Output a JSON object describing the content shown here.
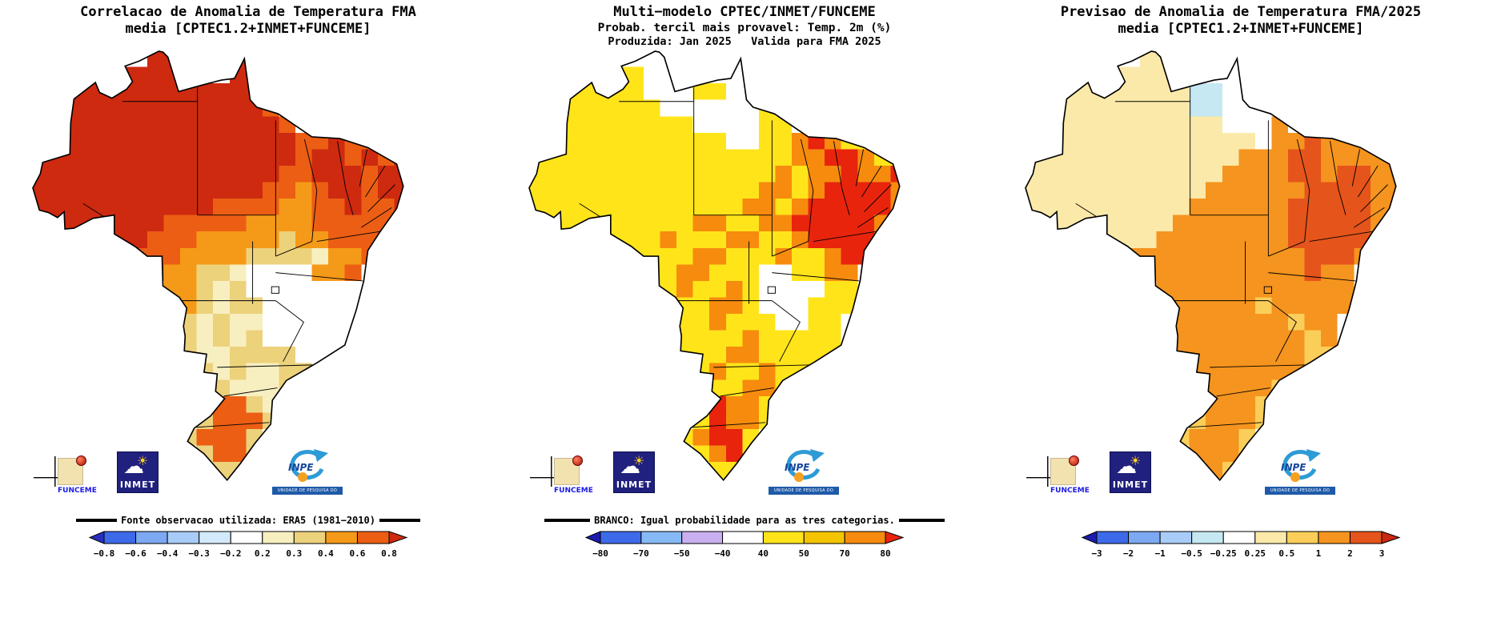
{
  "panels": [
    {
      "id": "correlation",
      "title_lines": [
        "Correlacao de Anomalia de Temperatura FMA",
        "media [CPTEC1.2+INMET+FUNCEME]"
      ],
      "footer": "Fonte observacao utilizada: ERA5 (1981−2010)",
      "colorbar": {
        "ticks": [
          "−0.8",
          "−0.6",
          "−0.4",
          "−0.3",
          "−0.2",
          "0.2",
          "0.3",
          "0.4",
          "0.6",
          "0.8"
        ],
        "colors": [
          "#2A2DBE",
          "#3D6AE8",
          "#7DA8F2",
          "#A8CCF7",
          "#D2EAFA",
          "#FFFFFF",
          "#F8EFC0",
          "#EDD27C",
          "#F59A18",
          "#EC5E14",
          "#CE2A10"
        ]
      },
      "map": {
        "palette": {
          "R": "#CE2A10",
          "r": "#EC5E14",
          "O": "#F59A18",
          "y": "#EDD27C",
          "c": "#F8EFC0",
          "w": "#FFFFFF"
        },
        "grid": [
          ".......RR...RR............",
          ".....RRRRR..RR............",
          "..RRRRRRRRRRRR............",
          "..RRRRRRRRRRRRr...........",
          "..RRRRRRRRRRRRRr..........",
          "..RRRRRRRRRRRRRRrrRrrRr...",
          "RRRRRRRRRRRRRRRRrRRrRrR...",
          "RRRRRRRRRRRRRRRrrRRRrRR...",
          "RRRRRRRRRRRRRRrrOrRRrRR...",
          "RRRRRRRRRRRrrrrOOrrRrrR...",
          ".RRRRRRRrrrrrOOOOrrrrr....",
          ".....RRrrrOOOOOyOOrrrr....",
          "......rrrOOOOyyyycOOr.....",
          ".......rOOyycwwwwOOr......",
          "........OOycywwwwwww......",
          ".........Oycyywwwwww......",
          ".........ycyccwwwww.......",
          ".........ycycywwwww.......",
          ".........yccyyyywww.......",
          "..........ycyccyyw........",
          "...........ycccy..........",
          "...........rryc...........",
          "..........yrrry...........",
          ".........yrrry............",
          "..........yrry............",
          "...........yy............."
        ]
      }
    },
    {
      "id": "probability",
      "title_lines": [
        "Multi−modelo CPTEC/INMET/FUNCEME",
        "Probab. tercil mais provavel: Temp. 2m (%)",
        "Produzida: Jan 2025   Valida para FMA 2025"
      ],
      "footer": "BRANCO: Igual probabilidade para as tres categorias.",
      "colorbar": {
        "ticks": [
          "−80",
          "−70",
          "−50",
          "−40",
          "40",
          "50",
          "70",
          "80"
        ],
        "colors": [
          "#1C1CB0",
          "#3D6AE8",
          "#86B9F5",
          "#C9AFF0",
          "#FFFFFF",
          "#FFE41A",
          "#F5C400",
          "#F68B0E",
          "#E8240D"
        ]
      },
      "map": {
        "palette": {
          "Y": "#FFE41A",
          "G": "#F5C400",
          "O": "#F68B0E",
          "R": "#E8240D",
          "w": "#FFFFFF"
        },
        "grid": [
          ".......ww...ww............",
          ".....YYwww..ww............",
          "..YYYYYwwwYYww............",
          "..YYYYYYwwwwwwY...........",
          "..YYYYYYYYwwwwYY..........",
          "..YYYYYYYYYYwwYYOROYYYY...",
          "YYYYYYYYYYYYYYYYOORROYY...",
          "YYYYYYYYYYYYYYYOYOOROOR...",
          "YYYYYYYYYYYYYYOOYORRRRO...",
          "YYYYYYYYYYYYYOOYORRRRRO...",
          ".YYYYYYYYYOOYYOORRRRRO....",
          ".....YYYOYYYOOYYORRRRO....",
          "......YYYYOOYYYOYYORRO....",
          ".......YYOOYYYwwYYOO......",
          "........YOYYOYwwwwYY......",
          ".........YYOOYwwwYYY......",
          ".........YYOYYYwwYY.......",
          ".........YYYYOYYYYY.......",
          ".........YYYOOYYYYY.......",
          "..........YOYYOYYY........",
          "...........YYOOY..........",
          "...........ROOY...........",
          "..........YROOY...........",
          ".........YORRY............",
          "..........YORY............",
          "...........YY............."
        ]
      }
    },
    {
      "id": "forecast",
      "title_lines": [
        "Previsao de Anomalia de Temperatura FMA/2025",
        "media [CPTEC1.2+INMET+FUNCEME]"
      ],
      "footer": "",
      "colorbar": {
        "ticks": [
          "−3",
          "−2",
          "−1",
          "−0.5",
          "−0.25",
          "0.25",
          "0.5",
          "1",
          "2",
          "3"
        ],
        "colors": [
          "#1C1CB0",
          "#3D6AE8",
          "#7DA8F2",
          "#A8CCF7",
          "#C5E8F2",
          "#FFFFFF",
          "#FBE9A9",
          "#FBCE5A",
          "#F5941E",
          "#E5541A",
          "#C9280E"
        ]
      },
      "map": {
        "palette": {
          "p": "#FBE9A9",
          "y": "#FBCE5A",
          "O": "#F5941E",
          "r": "#E5541A",
          "w": "#FFFFFF",
          "b": "#C5E8F2"
        },
        "grid": [
          ".......pp...ww............",
          ".....ppppw..ww............",
          "..ppppppppbbww............",
          "..ppppppppbbwww...........",
          "..ppppppppppwwwO..........",
          "..ppppppppppppwOOrOOOOO...",
          "pppppppppppppOOOrrOOOOO...",
          "ppppppppppppOOOOrrOrrOO...",
          "pppppppppppOOOOOOrrrrOO...",
          "ppppppppppOOOOOOrrrrrOO...",
          ".ppppppppOOOOOOOrrrrrO....",
          ".....pppOOOOOOOOrrrrrO....",
          "......OOOOOOOOOOOrrrO.....",
          ".......OOOOOOOOOOrOO......",
          "........OOOOOOOOOOOO......",
          ".........OOOOOyOOOOO......",
          ".........OOOOOOOyOO.......",
          ".........OOOOOOOOyO.......",
          ".........OOOOOOOOyy.......",
          "..........OOOOOOOy........",
          "...........OOOOy..........",
          "...........OOOy...........",
          "..........yOOOy...........",
          ".........yOOOy............",
          "..........OOOy............",
          "...........Oy............."
        ]
      }
    }
  ],
  "logos": {
    "funceme": {
      "label": "FUNCEME"
    },
    "inmet": {
      "label": "INMET"
    },
    "inpe": {
      "label": "INPE",
      "sub": "UNIDADE DE PESQUISA DO MCTI"
    }
  },
  "chart_data": [
    {
      "type": "heatmap",
      "title": "Correlacao de Anomalia de Temperatura FMA media [CPTEC1.2+INMET+FUNCEME]",
      "region": "Brazil",
      "variable": "correlation",
      "scale_ticks": [
        -0.8,
        -0.6,
        -0.4,
        -0.3,
        -0.2,
        0.2,
        0.3,
        0.4,
        0.6,
        0.8
      ],
      "note": "Fonte observacao utilizada: ERA5 (1981-2010)",
      "summary": "Correlation > 0.8 (dark red) over Amazon, northern and northeastern Brazil; 0.3-0.6 over central Brazil; near zero (white) over Minas Gerais / Southeast; 0.6-0.8 patch over southern Rio Grande do Sul."
    },
    {
      "type": "heatmap",
      "title": "Multi-modelo CPTEC/INMET/FUNCEME - Probab. tercil mais provavel: Temp. 2m (%) - Produzida: Jan 2025, Valida para FMA 2025",
      "region": "Brazil",
      "variable": "probability_most_likely_tercile_pct",
      "scale_ticks": [
        -80,
        -70,
        -50,
        -40,
        40,
        50,
        70,
        80
      ],
      "note": "BRANCO: Igual probabilidade para as tres categorias.",
      "summary": "Mostly 40-50% (yellow) nationwide; 50-80%+ (orange/red) over interior Northeast (Bahia/Pernambuco) and southern Rio Grande do Sul; white (equal probability) over Roraima, Amapa and parts of the Southeast."
    },
    {
      "type": "heatmap",
      "title": "Previsao de Anomalia de Temperatura FMA/2025 media [CPTEC1.2+INMET+FUNCEME]",
      "region": "Brazil",
      "variable": "temperature_anomaly_degC",
      "scale_ticks": [
        -3,
        -2,
        -1,
        -0.5,
        -0.25,
        0.25,
        0.5,
        1,
        2,
        3
      ],
      "summary": "Anomalies of +1 to +2 C (orange) over most of central, eastern and southern Brazil; +2 to +3 C (dark orange) over interior Northeast; +0.25 to +0.5 C (pale yellow) over western Amazon; small negative patch (light blue) in far north."
    }
  ]
}
